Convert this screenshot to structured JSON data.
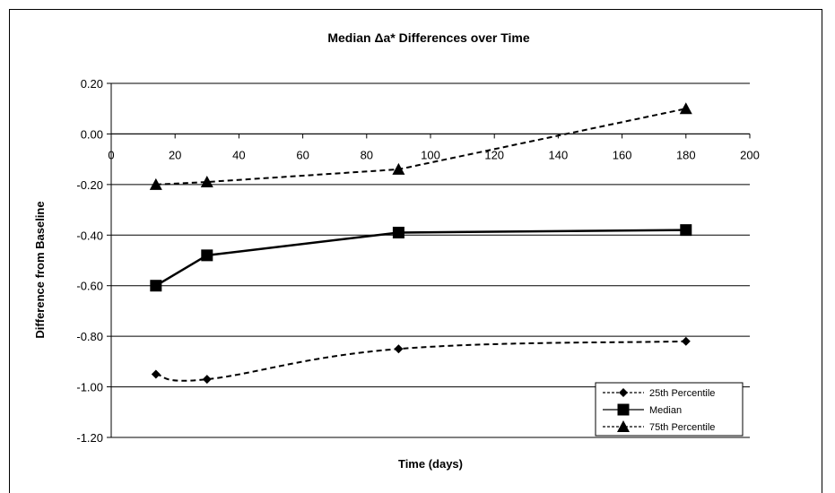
{
  "chart_data": {
    "type": "line",
    "title": "Median Δa* Differences over Time",
    "xlabel": "Time (days)",
    "ylabel": "Difference from Baseline",
    "xlim": [
      0,
      200
    ],
    "ylim": [
      -1.2,
      0.2
    ],
    "x_ticks": [
      0,
      20,
      40,
      60,
      80,
      100,
      120,
      140,
      160,
      180,
      200
    ],
    "y_ticks": [
      0.2,
      0.0,
      -0.2,
      -0.4,
      -0.6,
      -0.8,
      -1.0,
      -1.2
    ],
    "x_tick_labels": [
      "0",
      "20",
      "40",
      "60",
      "80",
      "100",
      "120",
      "140",
      "160",
      "180",
      "200"
    ],
    "y_tick_labels": [
      "0.20",
      "0.00",
      "-0.20",
      "-0.40",
      "-0.60",
      "-0.80",
      "-1.00",
      "-1.20"
    ],
    "grid": "horizontal major gridlines",
    "legend_position": "bottom-right",
    "x": [
      14,
      30,
      90,
      180
    ],
    "series": [
      {
        "name": "25th Percentile",
        "values": [
          -0.95,
          -0.97,
          -0.85,
          -0.82
        ],
        "marker": "diamond",
        "line": "dashed",
        "smooth": true,
        "color": "#000000"
      },
      {
        "name": "Median",
        "values": [
          -0.6,
          -0.48,
          -0.39,
          -0.38
        ],
        "marker": "square",
        "line": "solid",
        "smooth": false,
        "color": "#000000"
      },
      {
        "name": "75th Percentile",
        "values": [
          -0.2,
          -0.19,
          -0.14,
          0.1
        ],
        "marker": "triangle",
        "line": "dashed",
        "smooth": false,
        "color": "#000000"
      }
    ]
  }
}
